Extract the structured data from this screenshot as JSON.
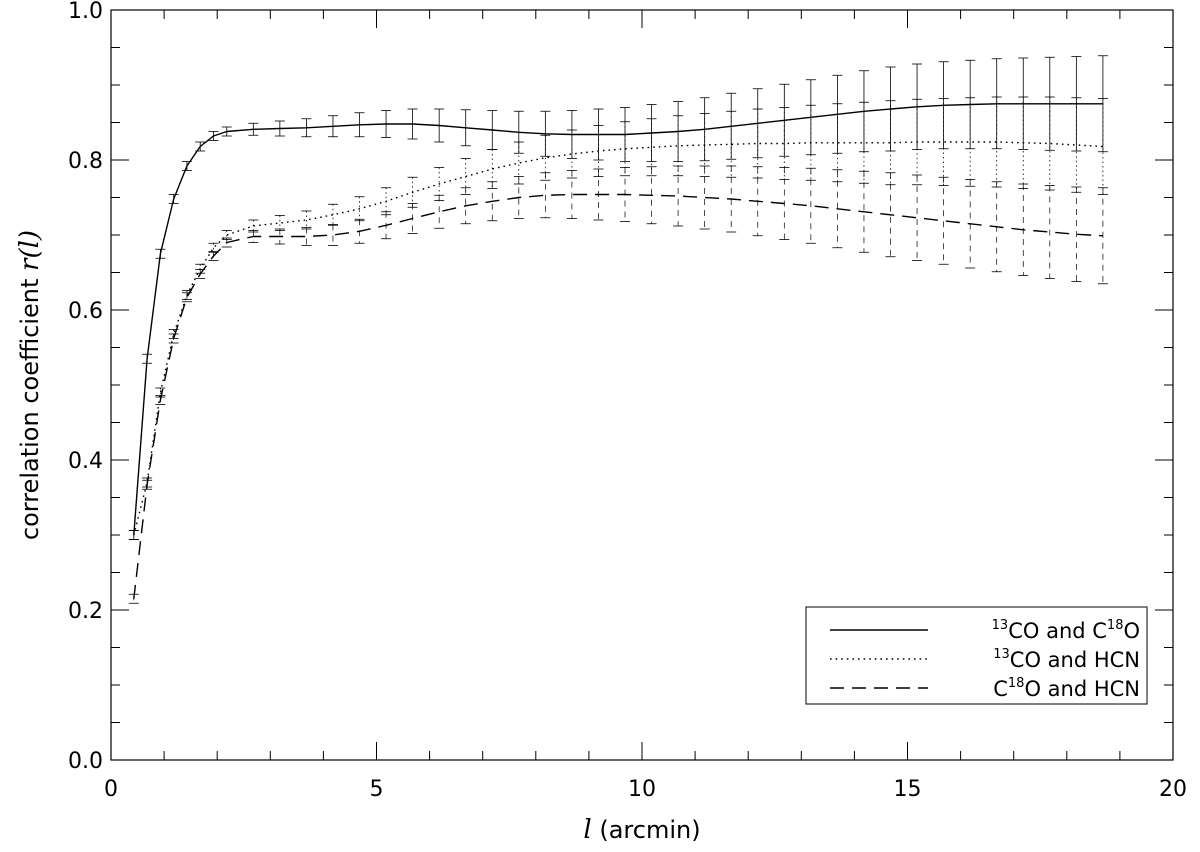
{
  "chart_data": {
    "type": "line",
    "xlabel": "(arcmin)",
    "xlabel_symbol": "l",
    "ylabel": "correlation coefficient",
    "ylabel_symbol": "r(l)",
    "xlim": [
      0,
      20
    ],
    "ylim": [
      0.0,
      1.0
    ],
    "xticks": [
      "0",
      "5",
      "10",
      "15",
      "20"
    ],
    "yticks": [
      "0.0",
      "0.2",
      "0.4",
      "0.6",
      "0.8",
      "1.0"
    ],
    "grid": false,
    "legend_position": "bottom-right",
    "x": [
      0.43,
      0.68,
      0.93,
      1.18,
      1.43,
      1.68,
      1.93,
      2.18,
      2.68,
      3.18,
      3.68,
      4.18,
      4.68,
      5.18,
      5.68,
      6.18,
      6.68,
      7.18,
      7.68,
      8.18,
      8.68,
      9.18,
      9.68,
      10.18,
      10.68,
      11.18,
      11.68,
      12.18,
      12.68,
      13.18,
      13.68,
      14.18,
      14.68,
      15.18,
      15.68,
      16.18,
      16.68,
      17.18,
      17.68,
      18.18,
      18.68
    ],
    "series": [
      {
        "name": "13CO and C18O",
        "label_parts": [
          {
            "sup": "13",
            "text": "CO and C"
          },
          {
            "sup": "18",
            "text": "O"
          }
        ],
        "style": "solid",
        "values": [
          0.3,
          0.535,
          0.675,
          0.748,
          0.792,
          0.818,
          0.832,
          0.838,
          0.841,
          0.842,
          0.843,
          0.845,
          0.847,
          0.848,
          0.848,
          0.846,
          0.843,
          0.84,
          0.837,
          0.835,
          0.834,
          0.834,
          0.834,
          0.836,
          0.838,
          0.841,
          0.845,
          0.849,
          0.853,
          0.857,
          0.861,
          0.865,
          0.868,
          0.871,
          0.873,
          0.874,
          0.875,
          0.875,
          0.875,
          0.875,
          0.875
        ],
        "errors": [
          0.006,
          0.006,
          0.006,
          0.006,
          0.006,
          0.006,
          0.006,
          0.006,
          0.008,
          0.01,
          0.012,
          0.014,
          0.016,
          0.018,
          0.02,
          0.022,
          0.024,
          0.026,
          0.028,
          0.03,
          0.032,
          0.034,
          0.036,
          0.038,
          0.04,
          0.042,
          0.044,
          0.046,
          0.048,
          0.05,
          0.052,
          0.054,
          0.056,
          0.057,
          0.058,
          0.059,
          0.06,
          0.061,
          0.062,
          0.063,
          0.064
        ]
      },
      {
        "name": "13CO and HCN",
        "label_parts": [
          {
            "sup": "13",
            "text": "CO and HCN"
          }
        ],
        "style": "dotted",
        "values": [
          0.3,
          0.37,
          0.49,
          0.568,
          0.62,
          0.655,
          0.683,
          0.7,
          0.712,
          0.716,
          0.72,
          0.727,
          0.735,
          0.745,
          0.757,
          0.768,
          0.778,
          0.788,
          0.796,
          0.803,
          0.808,
          0.812,
          0.815,
          0.817,
          0.819,
          0.82,
          0.821,
          0.822,
          0.822,
          0.823,
          0.823,
          0.823,
          0.823,
          0.824,
          0.824,
          0.824,
          0.824,
          0.823,
          0.822,
          0.82,
          0.818
        ]
      },
      {
        "name": "C18O and HCN",
        "label_parts": [
          {
            "sup": "",
            "text": "C"
          },
          {
            "sup": "18",
            "text": "O and HCN"
          }
        ],
        "style": "dashed",
        "values": [
          0.215,
          0.367,
          0.48,
          0.562,
          0.617,
          0.648,
          0.672,
          0.69,
          0.698,
          0.698,
          0.698,
          0.7,
          0.705,
          0.713,
          0.722,
          0.731,
          0.739,
          0.745,
          0.75,
          0.753,
          0.754,
          0.754,
          0.754,
          0.753,
          0.752,
          0.75,
          0.748,
          0.745,
          0.742,
          0.739,
          0.735,
          0.731,
          0.727,
          0.723,
          0.719,
          0.715,
          0.711,
          0.707,
          0.704,
          0.701,
          0.699
        ]
      }
    ]
  }
}
